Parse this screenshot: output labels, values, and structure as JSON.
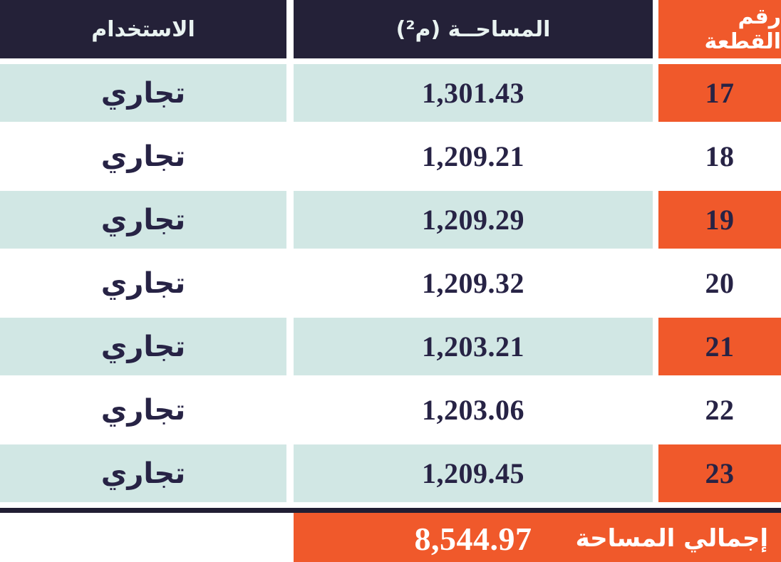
{
  "table": {
    "headers": {
      "use": "الاستخدام",
      "area": "المساحــة (م²)",
      "plot": "رقم القطعة"
    },
    "rows": [
      {
        "plot": "17",
        "area": "1,301.43",
        "use": "تجاري"
      },
      {
        "plot": "18",
        "area": "1,209.21",
        "use": "تجاري"
      },
      {
        "plot": "19",
        "area": "1,209.29",
        "use": "تجاري"
      },
      {
        "plot": "20",
        "area": "1,209.32",
        "use": "تجاري"
      },
      {
        "plot": "21",
        "area": "1,203.21",
        "use": "تجاري"
      },
      {
        "plot": "22",
        "area": "1,203.06",
        "use": "تجاري"
      },
      {
        "plot": "23",
        "area": "1,209.45",
        "use": "تجاري"
      }
    ],
    "footer": {
      "label": "إجمالي المساحة",
      "total": "8,544.97"
    }
  },
  "chart_data": {
    "type": "table",
    "columns": [
      "رقم القطعة",
      "المساحــة (م²)",
      "الاستخدام"
    ],
    "rows": [
      [
        17,
        1301.43,
        "تجاري"
      ],
      [
        18,
        1209.21,
        "تجاري"
      ],
      [
        19,
        1209.29,
        "تجاري"
      ],
      [
        20,
        1209.32,
        "تجاري"
      ],
      [
        21,
        1203.21,
        "تجاري"
      ],
      [
        22,
        1203.06,
        "تجاري"
      ],
      [
        23,
        1209.45,
        "تجاري"
      ]
    ],
    "total_label": "إجمالي المساحة",
    "total_area": 8544.97
  },
  "colors": {
    "orange": "#F0592B",
    "navy": "#242138",
    "line": "#211E33",
    "teal": "#D1E7E4",
    "header_text": "#E9F3F1",
    "dark_text": "#272345"
  }
}
